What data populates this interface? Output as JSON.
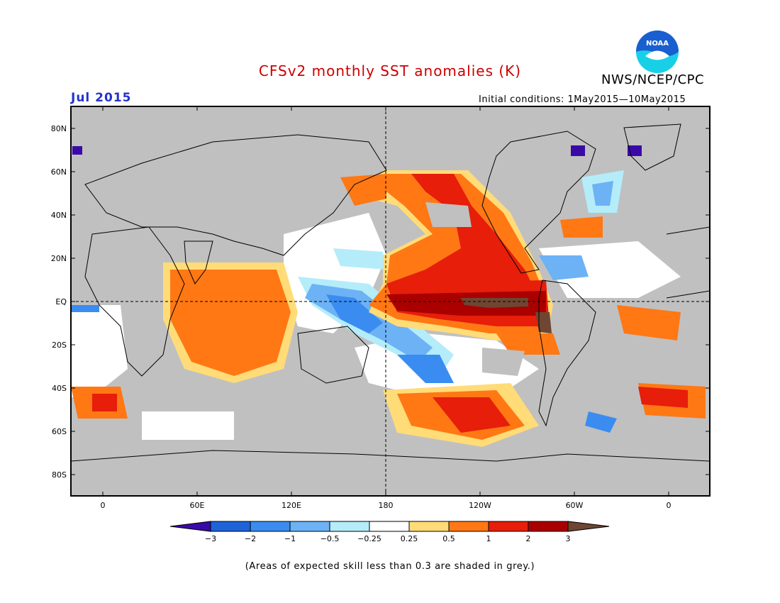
{
  "header": {
    "title": "CFSv2 monthly SST anomalies (K)",
    "month": "Jul 2015",
    "org": "NWS/NCEP/CPC",
    "initial_conditions": "Initial conditions: 1May2015—10May2015",
    "logo_text": "NOAA"
  },
  "colors": {
    "title": "#cc0000",
    "month": "#2233cc",
    "land_grey": "#c0c0c0",
    "logo_blue": "#1a5fcf",
    "logo_cyan": "#17d0e8"
  },
  "map": {
    "lat_labels": [
      "80N",
      "60N",
      "40N",
      "20N",
      "EQ",
      "20S",
      "40S",
      "60S",
      "80S"
    ],
    "lon_labels": [
      "0",
      "60E",
      "120E",
      "180",
      "120W",
      "60W",
      "0"
    ],
    "reference_lines": [
      "equator",
      "dateline"
    ]
  },
  "colorbar": {
    "levels": [
      "−3",
      "−2",
      "−1",
      "−0.5",
      "−0.25",
      "0.25",
      "0.5",
      "1",
      "2",
      "3"
    ],
    "colors": [
      "#3a0aa8",
      "#1e64d8",
      "#3a8cf0",
      "#6cb2f5",
      "#b4ecfa",
      "#ffffff",
      "#ffdc78",
      "#ff7814",
      "#e61e0a",
      "#aa0000",
      "#6e4632"
    ]
  },
  "footer": {
    "note": "(Areas of expected skill less than 0.3 are shaded in grey.)"
  }
}
